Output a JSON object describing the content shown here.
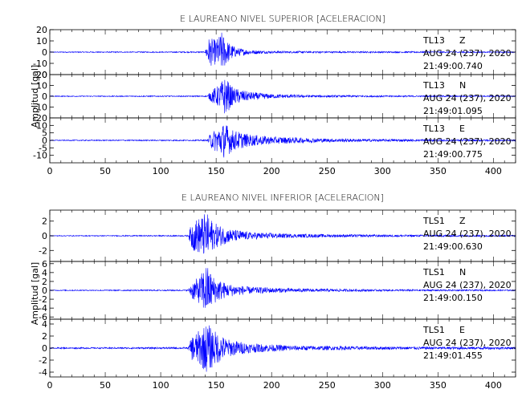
{
  "chart_data": [
    {
      "type": "line",
      "title": "E LAUREANO NIVEL SUPERIOR [ACELERACION]",
      "ylabel": "Amplitud [gal]",
      "xlim": [
        0,
        420
      ],
      "x_ticks": [
        "0",
        "50",
        "100",
        "150",
        "200",
        "250",
        "300",
        "350",
        "400"
      ],
      "series_color": "#0000ff",
      "series": [
        {
          "name": "TL13 Z",
          "station": "TL13",
          "component": "Z",
          "date": "AUG 24 (237), 2020",
          "time": "21:49:00.740",
          "ylim": [
            -20,
            20
          ],
          "y_ticks": [
            "20",
            "10",
            "0",
            "-10",
            "-20"
          ],
          "envelope": [
            [
              0,
              0.4
            ],
            [
              140,
              0.5
            ],
            [
              143,
              13
            ],
            [
              150,
              11
            ],
            [
              155,
              18
            ],
            [
              160,
              10
            ],
            [
              168,
              4
            ],
            [
              180,
              2
            ],
            [
              200,
              1
            ],
            [
              260,
              0.7
            ],
            [
              420,
              0.5
            ]
          ]
        },
        {
          "name": "TL13 N",
          "station": "TL13",
          "component": "N",
          "date": "AUG 24 (237), 2020",
          "time": "21:49:01.095",
          "ylim": [
            -20,
            20
          ],
          "y_ticks": [
            "20",
            "10",
            "0",
            "-10",
            "-20"
          ],
          "envelope": [
            [
              0,
              0.4
            ],
            [
              142,
              0.5
            ],
            [
              146,
              6
            ],
            [
              152,
              10
            ],
            [
              158,
              18
            ],
            [
              165,
              8
            ],
            [
              180,
              4
            ],
            [
              200,
              2
            ],
            [
              240,
              1
            ],
            [
              300,
              0.7
            ],
            [
              420,
              0.5
            ]
          ]
        },
        {
          "name": "TL13 E",
          "station": "TL13",
          "component": "E",
          "date": "AUG 24 (237), 2020",
          "time": "21:49:00.775",
          "ylim": [
            -15,
            15
          ],
          "y_ticks": [
            "10",
            "5",
            "0",
            "-5",
            "-10"
          ],
          "envelope": [
            [
              0,
              0.3
            ],
            [
              142,
              0.4
            ],
            [
              145,
              5
            ],
            [
              152,
              9
            ],
            [
              158,
              12
            ],
            [
              165,
              7
            ],
            [
              180,
              4
            ],
            [
              200,
              2.5
            ],
            [
              250,
              1.2
            ],
            [
              300,
              0.8
            ],
            [
              420,
              0.5
            ]
          ]
        }
      ]
    },
    {
      "type": "line",
      "title": "E LAUREANO NIVEL INFERIOR [ACELERACION]",
      "ylabel": "Amplitud [gal]",
      "xlim": [
        0,
        420
      ],
      "x_ticks": [
        "0",
        "50",
        "100",
        "150",
        "200",
        "250",
        "300",
        "350",
        "400"
      ],
      "series_color": "#0000ff",
      "series": [
        {
          "name": "TLS1 Z",
          "station": "TLS1",
          "component": "Z",
          "date": "AUG 24 (237), 2020",
          "time": "21:49:00.630",
          "ylim": [
            -3.5,
            3.5
          ],
          "y_ticks": [
            "2",
            "0",
            "-2"
          ],
          "envelope": [
            [
              0,
              0.05
            ],
            [
              125,
              0.08
            ],
            [
              128,
              2
            ],
            [
              135,
              2.5
            ],
            [
              141,
              3.2
            ],
            [
              148,
              1.8
            ],
            [
              160,
              1
            ],
            [
              180,
              0.5
            ],
            [
              220,
              0.25
            ],
            [
              300,
              0.15
            ],
            [
              420,
              0.1
            ]
          ]
        },
        {
          "name": "TLS1 N",
          "station": "TLS1",
          "component": "N",
          "date": "AUG 24 (237), 2020",
          "time": "21:49:00.150",
          "ylim": [
            -6.5,
            6.5
          ],
          "y_ticks": [
            "6",
            "4",
            "2",
            "0",
            "-2",
            "-4",
            "-6"
          ],
          "envelope": [
            [
              0,
              0.1
            ],
            [
              125,
              0.15
            ],
            [
              128,
              2
            ],
            [
              135,
              3
            ],
            [
              141,
              6
            ],
            [
              148,
              3
            ],
            [
              160,
              1.5
            ],
            [
              180,
              0.8
            ],
            [
              220,
              0.4
            ],
            [
              300,
              0.2
            ],
            [
              420,
              0.15
            ]
          ]
        },
        {
          "name": "TLS1 E",
          "station": "TLS1",
          "component": "E",
          "date": "AUG 24 (237), 2020",
          "time": "21:49:01.455",
          "ylim": [
            -4.8,
            4.8
          ],
          "y_ticks": [
            "4",
            "2",
            "0",
            "-2",
            "-4"
          ],
          "envelope": [
            [
              0,
              0.1
            ],
            [
              125,
              0.15
            ],
            [
              128,
              2
            ],
            [
              135,
              3
            ],
            [
              142,
              4.2
            ],
            [
              148,
              3
            ],
            [
              160,
              1.5
            ],
            [
              180,
              0.8
            ],
            [
              220,
              0.4
            ],
            [
              300,
              0.25
            ],
            [
              420,
              0.2
            ]
          ]
        }
      ]
    }
  ]
}
